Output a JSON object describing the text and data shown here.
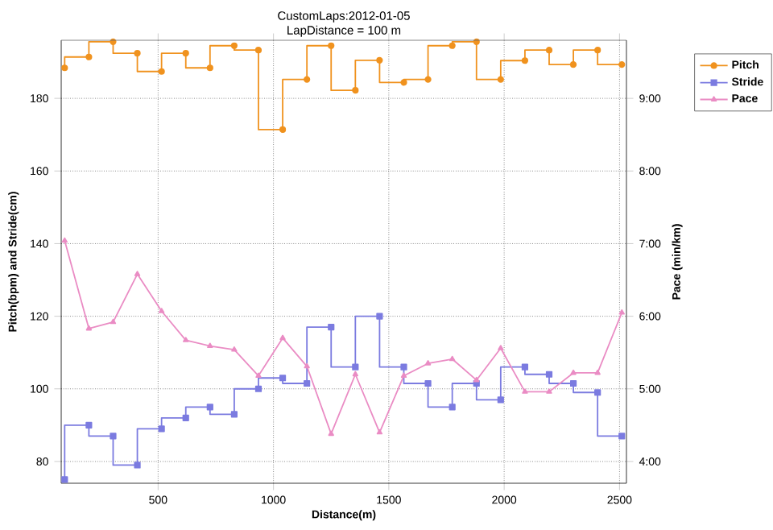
{
  "chart_data": {
    "type": "line",
    "title": "CustomLaps:2012-01-05",
    "subtitle": "LapDistance = 100 m",
    "xlabel": "Distance(m)",
    "ylabel": "Pitch(bpm) and Stride(cm)",
    "y2label": "Pace (min/km)",
    "x": [
      95,
      200,
      305,
      410,
      515,
      620,
      725,
      830,
      935,
      1040,
      1145,
      1250,
      1355,
      1460,
      1565,
      1670,
      1775,
      1880,
      1985,
      2090,
      2195,
      2300,
      2405,
      2510
    ],
    "series": [
      {
        "name": "Pitch",
        "type": "step",
        "marker": "circle",
        "color": "#f0921e",
        "values": [
          188.4,
          191.4,
          195.6,
          192.4,
          187.4,
          192.4,
          188.4,
          194.5,
          193.3,
          171.4,
          185.2,
          194.5,
          182.2,
          190.5,
          184.4,
          185.2,
          194.5,
          195.6,
          185.2,
          190.4,
          193.3,
          189.3,
          193.3,
          189.3
        ]
      },
      {
        "name": "Stride",
        "type": "step",
        "marker": "square",
        "color": "#7b7be0",
        "values": [
          75,
          90,
          87,
          79,
          89,
          92,
          95,
          93,
          100,
          103,
          101.5,
          117,
          106,
          120,
          106,
          101.5,
          95,
          101.5,
          97,
          106,
          104,
          101.5,
          99,
          87
        ]
      },
      {
        "name": "Pace",
        "marker": "triangle",
        "color": "#ea8cc4",
        "axis": "y2",
        "values": [
          7.04,
          5.83,
          5.92,
          6.58,
          6.07,
          5.67,
          5.59,
          5.54,
          5.18,
          5.7,
          5.31,
          4.38,
          5.2,
          4.4,
          5.18,
          5.35,
          5.41,
          5.12,
          5.56,
          4.96,
          4.96,
          5.22,
          5.22,
          6.05
        ]
      }
    ],
    "xlim": [
      80,
      2530
    ],
    "xticks": [
      500,
      1000,
      1500,
      2000,
      2500
    ],
    "ylim": [
      74,
      196
    ],
    "yticks": [
      80,
      100,
      120,
      140,
      160,
      180
    ],
    "y2lim": [
      3.7,
      9.8
    ],
    "y2ticks": [
      {
        "value": 4,
        "label": "4:00"
      },
      {
        "value": 5,
        "label": "5:00"
      },
      {
        "value": 6,
        "label": "6:00"
      },
      {
        "value": 7,
        "label": "7:00"
      },
      {
        "value": 8,
        "label": "8:00"
      },
      {
        "value": 9,
        "label": "9:00"
      }
    ],
    "grid": true,
    "legend": "top right"
  }
}
